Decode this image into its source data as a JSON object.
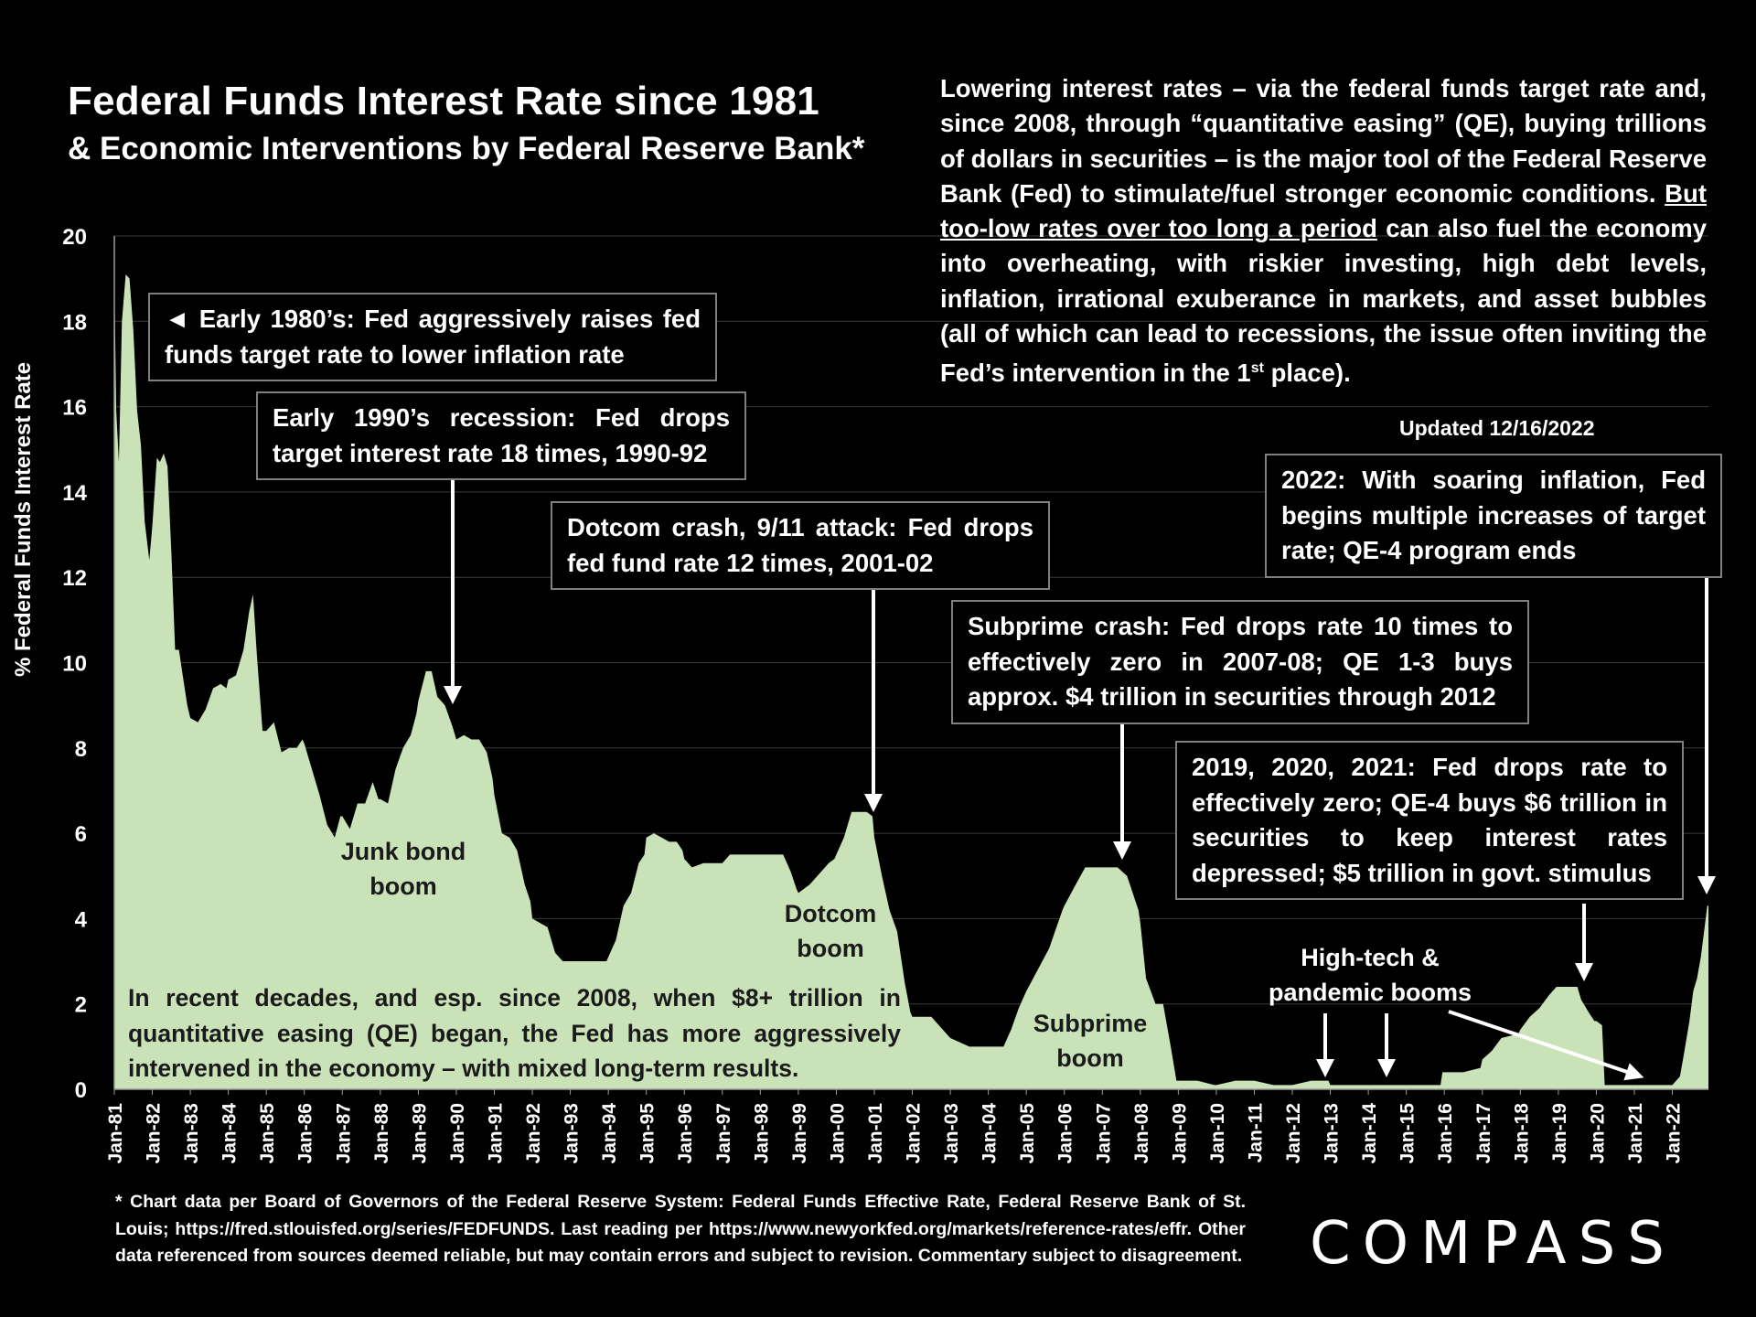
{
  "header": {
    "title": "Federal Funds Interest Rate since 1981",
    "subtitle": "& Economic Interventions by Federal Reserve Bank*"
  },
  "intro": {
    "part1": "Lowering interest rates – via the federal funds target rate and, since 2008, through “quantitative easing” (QE), buying trillions of dollars in securities – is the major tool of the Federal Reserve Bank (Fed) to stimulate/fuel stronger economic conditions. ",
    "underlined": "But too-low rates over too long a period",
    "part2": " can also fuel the economy into overheating, with riskier investing, high debt levels, inflation, irrational exuberance in markets, and asset bubbles (all of which can lead to recessions, the issue often inviting the Fed’s intervention in the 1",
    "sup": "st",
    "part3": " place)."
  },
  "updated": "Updated 12/16/2022",
  "callouts": {
    "c1980": "◄ Early 1980’s: Fed aggressively raises fed funds target rate to lower inflation rate",
    "c1990": "Early 1990’s recession: Fed drops target interest rate 18 times, 1990-92",
    "c2001": "Dotcom crash, 9/11 attack: Fed drops fed fund rate 12 times, 2001-02",
    "c2008": "Subprime crash: Fed drops rate 10 times to effectively zero in 2007-08; QE 1-3 buys approx. $4 trillion in securities through 2012",
    "c2020": "2019, 2020, 2021: Fed drops rate to effectively zero; QE-4 buys $6 trillion in securities to keep interest rates depressed; $5 trillion in govt. stimulus",
    "c2022": "2022: With soaring inflation, Fed begins multiple increases of target rate; QE-4 program ends"
  },
  "labels": {
    "junk_bond": "Junk bond boom",
    "dotcom": "Dotcom boom",
    "subprime": "Subprime boom",
    "hightech": "High-tech & pandemic booms"
  },
  "bottom_note": "In recent decades, and esp. since 2008, when $8+ trillion in quantitative easing (QE) began, the Fed has more aggressively intervened in the economy – with mixed long-term results.",
  "footnote": "* Chart data per Board of Governors of the Federal Reserve System: Federal Funds Effective Rate, Federal Reserve Bank of St. Louis; https://fred.stlouisfed.org/series/FEDFUNDS. Last reading per https://www.newyorkfed.org/markets/reference-rates/effr. Other data referenced from sources deemed reliable, but may contain errors and subject to revision. Commentary subject to disagreement.",
  "logo": "COMPASS",
  "colors": {
    "fill": "#c9e2b8",
    "grid": "#3a3a3a",
    "text": "#ffffff"
  },
  "chart_data": {
    "type": "area",
    "title": "Federal Funds Interest Rate since 1981",
    "ylabel": "% Federal Funds Interest Rate",
    "xlabel": "",
    "ylim": [
      0,
      20
    ],
    "yticks": [
      0,
      2,
      4,
      6,
      8,
      10,
      12,
      14,
      16,
      18,
      20
    ],
    "xlim": [
      1981.0,
      2022.95
    ],
    "xtick_labels": [
      "Jan-81",
      "Jan-82",
      "Jan-83",
      "Jan-84",
      "Jan-85",
      "Jan-86",
      "Jan-87",
      "Jan-88",
      "Jan-89",
      "Jan-90",
      "Jan-91",
      "Jan-92",
      "Jan-93",
      "Jan-94",
      "Jan-95",
      "Jan-96",
      "Jan-97",
      "Jan-98",
      "Jan-99",
      "Jan-00",
      "Jan-01",
      "Jan-02",
      "Jan-03",
      "Jan-04",
      "Jan-05",
      "Jan-06",
      "Jan-07",
      "Jan-08",
      "Jan-09",
      "Jan-10",
      "Jan-11",
      "Jan-12",
      "Jan-13",
      "Jan-14",
      "Jan-15",
      "Jan-16",
      "Jan-17",
      "Jan-18",
      "Jan-19",
      "Jan-20",
      "Jan-21",
      "Jan-22"
    ],
    "series": [
      {
        "name": "Federal Funds Effective Rate",
        "points": [
          [
            1981.0,
            19.1
          ],
          [
            1981.05,
            15.9
          ],
          [
            1981.12,
            14.7
          ],
          [
            1981.2,
            18.0
          ],
          [
            1981.3,
            19.1
          ],
          [
            1981.4,
            19.0
          ],
          [
            1981.5,
            17.8
          ],
          [
            1981.6,
            15.9
          ],
          [
            1981.7,
            15.1
          ],
          [
            1981.8,
            13.3
          ],
          [
            1981.92,
            12.4
          ],
          [
            1982.0,
            13.2
          ],
          [
            1982.12,
            14.8
          ],
          [
            1982.2,
            14.7
          ],
          [
            1982.3,
            14.9
          ],
          [
            1982.4,
            14.6
          ],
          [
            1982.5,
            12.6
          ],
          [
            1982.6,
            10.3
          ],
          [
            1982.7,
            10.3
          ],
          [
            1982.8,
            9.7
          ],
          [
            1982.92,
            9.0
          ],
          [
            1983.0,
            8.7
          ],
          [
            1983.2,
            8.6
          ],
          [
            1983.4,
            8.9
          ],
          [
            1983.6,
            9.4
          ],
          [
            1983.8,
            9.5
          ],
          [
            1983.95,
            9.4
          ],
          [
            1984.0,
            9.6
          ],
          [
            1984.2,
            9.7
          ],
          [
            1984.4,
            10.3
          ],
          [
            1984.55,
            11.2
          ],
          [
            1984.65,
            11.6
          ],
          [
            1984.75,
            10.2
          ],
          [
            1984.9,
            8.4
          ],
          [
            1985.0,
            8.4
          ],
          [
            1985.2,
            8.6
          ],
          [
            1985.4,
            7.9
          ],
          [
            1985.6,
            8.0
          ],
          [
            1985.8,
            8.0
          ],
          [
            1985.95,
            8.2
          ],
          [
            1986.0,
            8.1
          ],
          [
            1986.2,
            7.5
          ],
          [
            1986.4,
            6.9
          ],
          [
            1986.6,
            6.2
          ],
          [
            1986.8,
            5.9
          ],
          [
            1986.95,
            6.4
          ],
          [
            1987.0,
            6.4
          ],
          [
            1987.2,
            6.1
          ],
          [
            1987.4,
            6.7
          ],
          [
            1987.6,
            6.7
          ],
          [
            1987.8,
            7.2
          ],
          [
            1987.95,
            6.8
          ],
          [
            1988.0,
            6.8
          ],
          [
            1988.2,
            6.7
          ],
          [
            1988.4,
            7.5
          ],
          [
            1988.6,
            8.0
          ],
          [
            1988.8,
            8.3
          ],
          [
            1988.95,
            8.8
          ],
          [
            1989.0,
            9.1
          ],
          [
            1989.2,
            9.8
          ],
          [
            1989.35,
            9.8
          ],
          [
            1989.5,
            9.2
          ],
          [
            1989.7,
            9.0
          ],
          [
            1989.9,
            8.5
          ],
          [
            1990.0,
            8.2
          ],
          [
            1990.2,
            8.3
          ],
          [
            1990.4,
            8.2
          ],
          [
            1990.6,
            8.2
          ],
          [
            1990.8,
            7.9
          ],
          [
            1990.95,
            7.3
          ],
          [
            1991.0,
            6.9
          ],
          [
            1991.2,
            6.0
          ],
          [
            1991.4,
            5.9
          ],
          [
            1991.6,
            5.6
          ],
          [
            1991.8,
            4.8
          ],
          [
            1991.95,
            4.4
          ],
          [
            1992.0,
            4.0
          ],
          [
            1992.2,
            3.9
          ],
          [
            1992.4,
            3.8
          ],
          [
            1992.6,
            3.2
          ],
          [
            1992.8,
            3.0
          ],
          [
            1992.95,
            3.0
          ],
          [
            1993.0,
            3.0
          ],
          [
            1993.4,
            3.0
          ],
          [
            1993.8,
            3.0
          ],
          [
            1993.95,
            3.0
          ],
          [
            1994.0,
            3.1
          ],
          [
            1994.2,
            3.5
          ],
          [
            1994.4,
            4.3
          ],
          [
            1994.6,
            4.6
          ],
          [
            1994.8,
            5.3
          ],
          [
            1994.95,
            5.5
          ],
          [
            1995.0,
            5.9
          ],
          [
            1995.2,
            6.0
          ],
          [
            1995.4,
            5.9
          ],
          [
            1995.6,
            5.8
          ],
          [
            1995.8,
            5.8
          ],
          [
            1995.95,
            5.6
          ],
          [
            1996.0,
            5.4
          ],
          [
            1996.2,
            5.2
          ],
          [
            1996.5,
            5.3
          ],
          [
            1996.8,
            5.3
          ],
          [
            1996.95,
            5.3
          ],
          [
            1997.0,
            5.3
          ],
          [
            1997.2,
            5.5
          ],
          [
            1997.5,
            5.5
          ],
          [
            1997.8,
            5.5
          ],
          [
            1997.95,
            5.5
          ],
          [
            1998.0,
            5.5
          ],
          [
            1998.3,
            5.5
          ],
          [
            1998.6,
            5.5
          ],
          [
            1998.8,
            5.1
          ],
          [
            1998.95,
            4.7
          ],
          [
            1999.0,
            4.6
          ],
          [
            1999.3,
            4.8
          ],
          [
            1999.6,
            5.1
          ],
          [
            1999.8,
            5.3
          ],
          [
            1999.95,
            5.4
          ],
          [
            2000.0,
            5.5
          ],
          [
            2000.2,
            5.9
          ],
          [
            2000.4,
            6.5
          ],
          [
            2000.6,
            6.5
          ],
          [
            2000.8,
            6.5
          ],
          [
            2000.95,
            6.4
          ],
          [
            2001.0,
            5.9
          ],
          [
            2001.2,
            5.0
          ],
          [
            2001.4,
            4.2
          ],
          [
            2001.6,
            3.7
          ],
          [
            2001.8,
            2.5
          ],
          [
            2001.95,
            1.8
          ],
          [
            2002.0,
            1.7
          ],
          [
            2002.5,
            1.7
          ],
          [
            2002.9,
            1.3
          ],
          [
            2003.0,
            1.2
          ],
          [
            2003.5,
            1.0
          ],
          [
            2003.95,
            1.0
          ],
          [
            2004.0,
            1.0
          ],
          [
            2004.4,
            1.0
          ],
          [
            2004.6,
            1.4
          ],
          [
            2004.8,
            1.9
          ],
          [
            2004.95,
            2.2
          ],
          [
            2005.0,
            2.3
          ],
          [
            2005.3,
            2.8
          ],
          [
            2005.6,
            3.3
          ],
          [
            2005.95,
            4.2
          ],
          [
            2006.0,
            4.3
          ],
          [
            2006.3,
            4.8
          ],
          [
            2006.55,
            5.2
          ],
          [
            2006.8,
            5.2
          ],
          [
            2006.95,
            5.2
          ],
          [
            2007.0,
            5.2
          ],
          [
            2007.4,
            5.2
          ],
          [
            2007.65,
            5.0
          ],
          [
            2007.8,
            4.6
          ],
          [
            2007.95,
            4.2
          ],
          [
            2008.0,
            3.9
          ],
          [
            2008.15,
            2.6
          ],
          [
            2008.4,
            2.0
          ],
          [
            2008.6,
            2.0
          ],
          [
            2008.8,
            1.0
          ],
          [
            2008.95,
            0.2
          ],
          [
            2009.0,
            0.2
          ],
          [
            2009.5,
            0.2
          ],
          [
            2009.95,
            0.1
          ],
          [
            2010.0,
            0.1
          ],
          [
            2010.5,
            0.2
          ],
          [
            2010.95,
            0.2
          ],
          [
            2011.0,
            0.2
          ],
          [
            2011.5,
            0.1
          ],
          [
            2011.95,
            0.1
          ],
          [
            2012.0,
            0.1
          ],
          [
            2012.5,
            0.2
          ],
          [
            2012.95,
            0.2
          ],
          [
            2013.0,
            0.1
          ],
          [
            2013.5,
            0.1
          ],
          [
            2013.95,
            0.1
          ],
          [
            2014.0,
            0.1
          ],
          [
            2014.5,
            0.1
          ],
          [
            2014.95,
            0.1
          ],
          [
            2015.0,
            0.1
          ],
          [
            2015.5,
            0.1
          ],
          [
            2015.9,
            0.1
          ],
          [
            2015.95,
            0.4
          ],
          [
            2016.0,
            0.4
          ],
          [
            2016.5,
            0.4
          ],
          [
            2016.95,
            0.5
          ],
          [
            2017.0,
            0.7
          ],
          [
            2017.25,
            0.9
          ],
          [
            2017.5,
            1.2
          ],
          [
            2017.95,
            1.3
          ],
          [
            2018.0,
            1.4
          ],
          [
            2018.25,
            1.7
          ],
          [
            2018.5,
            1.9
          ],
          [
            2018.75,
            2.2
          ],
          [
            2018.95,
            2.4
          ],
          [
            2019.0,
            2.4
          ],
          [
            2019.5,
            2.4
          ],
          [
            2019.6,
            2.1
          ],
          [
            2019.8,
            1.8
          ],
          [
            2019.95,
            1.6
          ],
          [
            2020.0,
            1.6
          ],
          [
            2020.15,
            1.5
          ],
          [
            2020.22,
            0.1
          ],
          [
            2020.5,
            0.1
          ],
          [
            2020.95,
            0.1
          ],
          [
            2021.0,
            0.1
          ],
          [
            2021.5,
            0.1
          ],
          [
            2021.95,
            0.1
          ],
          [
            2022.0,
            0.1
          ],
          [
            2022.2,
            0.3
          ],
          [
            2022.3,
            0.8
          ],
          [
            2022.45,
            1.6
          ],
          [
            2022.55,
            2.3
          ],
          [
            2022.65,
            2.6
          ],
          [
            2022.75,
            3.1
          ],
          [
            2022.85,
            3.8
          ],
          [
            2022.92,
            4.3
          ],
          [
            2022.95,
            4.3
          ]
        ]
      }
    ]
  }
}
